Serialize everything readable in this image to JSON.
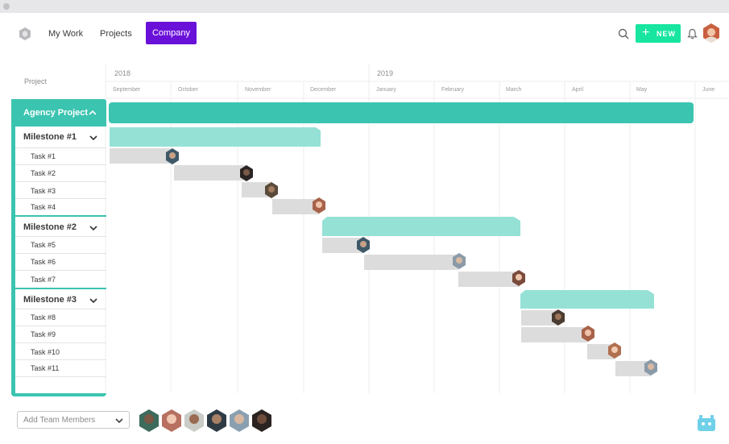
{
  "nav": {
    "logo_icon": "hexagon-logo-icon",
    "my_work": "My Work",
    "projects": "Projects",
    "company": "Company",
    "new_label": "NEW",
    "accent_purple": "#6a11d9",
    "accent_green": "#17e5a0"
  },
  "gantt": {
    "project_header": "Project",
    "years": [
      "2018",
      "2019"
    ],
    "months": [
      "September",
      "October",
      "November",
      "December",
      "January",
      "February",
      "March",
      "April",
      "May",
      "June"
    ],
    "project": "Agency Project",
    "milestones": [
      {
        "label": "Milestone #1",
        "tasks": [
          "Task #1",
          "Task #2",
          "Task #3",
          "Task #4"
        ]
      },
      {
        "label": "Milestone #2",
        "tasks": [
          "Task #5",
          "Task #6",
          "Task #7"
        ]
      },
      {
        "label": "Milestone #3",
        "tasks": [
          "Task #8",
          "Task #9",
          "Task #10",
          "Task #11"
        ]
      }
    ],
    "colors": {
      "project": "#3bc4b0",
      "milestone": "#95e1d6",
      "task": "#dcdcdc"
    }
  },
  "footer": {
    "add_members_placeholder": "Add Team Members"
  }
}
